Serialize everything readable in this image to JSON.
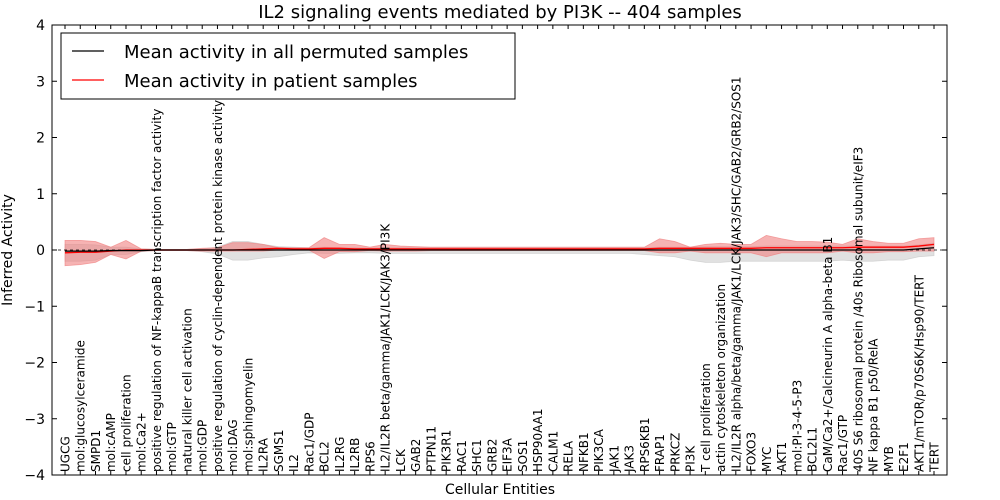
{
  "chart_data": {
    "type": "line",
    "title": "IL2 signaling events mediated by PI3K -- 404 samples",
    "xlabel": "Cellular Entities",
    "ylabel": "Inferred Activity",
    "ylim": [
      -4,
      4
    ],
    "yticks": [
      -4,
      -3,
      -2,
      -1,
      0,
      1,
      2,
      3,
      4
    ],
    "legend_position": "top-left",
    "legend": [
      {
        "label": "Mean activity in all permuted samples",
        "color": "#000000"
      },
      {
        "label": "Mean activity in patient samples",
        "color": "#ff0000"
      }
    ],
    "colors": {
      "permuted": "#000000",
      "patient": "#ff0000",
      "patient_band": "#f08080",
      "permuted_band": "#c8c8c8",
      "zero_line": "#000000"
    },
    "categories": [
      "UGCG",
      "mol:glucosylceramide",
      "SMPD1",
      "mol:cAMP",
      "cell proliferation",
      "mol:Ca2+",
      "positive regulation of NF-kappaB transcription factor activity",
      "mol:GTP",
      "natural killer cell activation",
      "mol:GDP",
      "positive regulation of cyclin-dependent protein kinase activity",
      "mol:DAG",
      "mol:sphingomyelin",
      "IL2RA",
      "SGMS1",
      "IL2",
      "Rac1/GDP",
      "BCL2",
      "IL2RG",
      "IL2RB",
      "RPS6",
      "IL2/IL2R beta/gamma/JAK1/LCK/JAK3/PI3K",
      "LCK",
      "GAB2",
      "PTPN11",
      "PIK3R1",
      "RAC1",
      "SHC1",
      "GRB2",
      "EIF3A",
      "SOS1",
      "HSP90AA1",
      "CALM1",
      "RELA",
      "NFKB1",
      "PIK3CA",
      "JAK1",
      "JAK3",
      "RPS6KB1",
      "FRAP1",
      "PRKCZ",
      "PI3K",
      "T cell proliferation",
      "actin cytoskeleton organization",
      "IL2/IL2R alpha/beta/gamma/JAK1/LCK/JAK3/SHC/GAB2/GRB2/SOS1",
      "FOXO3",
      "MYC",
      "AKT1",
      "mol:PI-3-4-5-P3",
      "BCL2L1",
      "CaM/Ca2+/Calcineurin A alpha-beta B1",
      "Rac1/GTP",
      "40S S6 ribosomal protein /40s Ribosomal subunit/eIF3",
      "NF kappa B1 p50/RelA",
      "MYB",
      "E2F1",
      "AKT1/mTOR/p70S6K/Hsp90/TERT",
      "TERT"
    ],
    "series": [
      {
        "name": "Mean activity in all permuted samples",
        "values": [
          -0.02,
          -0.02,
          -0.02,
          -0.01,
          -0.01,
          -0.01,
          0,
          0,
          0,
          0,
          0,
          0,
          0,
          0,
          0,
          0,
          0,
          0,
          0,
          0,
          0,
          0,
          0,
          0,
          0,
          0,
          0,
          0,
          0,
          0,
          0,
          0,
          0,
          0,
          0,
          0,
          0,
          0,
          0,
          0,
          0,
          0,
          0,
          0,
          0,
          0,
          0,
          0,
          0,
          0,
          0,
          0,
          0,
          0,
          0,
          0,
          0.02,
          0.04
        ]
      },
      {
        "name": "Mean activity in patient samples",
        "values": [
          -0.05,
          -0.04,
          -0.04,
          -0.02,
          0,
          0,
          0,
          0,
          0,
          0,
          0,
          0,
          0.01,
          0.02,
          0.03,
          0.02,
          0.02,
          0.03,
          0.03,
          0.02,
          0.02,
          0.02,
          0.02,
          0.02,
          0.02,
          0.02,
          0.02,
          0.02,
          0.02,
          0.02,
          0.02,
          0.02,
          0.02,
          0.02,
          0.02,
          0.02,
          0.02,
          0.02,
          0.02,
          0.03,
          0.03,
          0.03,
          0.03,
          0.03,
          0.03,
          0.03,
          0.04,
          0.04,
          0.04,
          0.04,
          0.04,
          0.04,
          0.05,
          0.05,
          0.05,
          0.05,
          0.07,
          0.1
        ]
      },
      {
        "name": "patient band upper",
        "values": [
          0.17,
          0.17,
          0.15,
          0.05,
          0.17,
          0.02,
          0.01,
          0.01,
          0.01,
          0.03,
          0.04,
          0.13,
          0.13,
          0.1,
          0.04,
          0.04,
          0.04,
          0.22,
          0.1,
          0.1,
          0.05,
          0.1,
          0.07,
          0.06,
          0.05,
          0.05,
          0.05,
          0.05,
          0.05,
          0.05,
          0.05,
          0.05,
          0.05,
          0.05,
          0.05,
          0.05,
          0.05,
          0.05,
          0.05,
          0.2,
          0.15,
          0.05,
          0.1,
          0.12,
          0.1,
          0.1,
          0.26,
          0.2,
          0.15,
          0.15,
          0.14,
          0.1,
          0.2,
          0.15,
          0.12,
          0.12,
          0.2,
          0.22
        ]
      },
      {
        "name": "patient band lower",
        "values": [
          -0.28,
          -0.26,
          -0.22,
          -0.08,
          -0.16,
          -0.02,
          -0.01,
          -0.01,
          -0.01,
          -0.02,
          -0.02,
          -0.02,
          -0.02,
          -0.02,
          0,
          0,
          0,
          -0.15,
          -0.03,
          -0.03,
          -0.01,
          -0.02,
          -0.02,
          -0.02,
          -0.01,
          -0.01,
          -0.01,
          -0.01,
          -0.01,
          -0.01,
          -0.01,
          -0.01,
          -0.01,
          -0.01,
          -0.01,
          -0.01,
          -0.01,
          -0.01,
          -0.01,
          -0.05,
          -0.05,
          -0.02,
          -0.05,
          -0.05,
          -0.05,
          -0.05,
          -0.12,
          -0.05,
          -0.05,
          -0.05,
          -0.05,
          -0.02,
          -0.05,
          -0.05,
          -0.03,
          -0.03,
          -0.02,
          -0.02
        ]
      },
      {
        "name": "permuted band upper",
        "values": [
          0.1,
          0.1,
          0.09,
          0.05,
          0.05,
          0.02,
          0.01,
          0.01,
          0.01,
          0.02,
          0.05,
          0.15,
          0.15,
          0.1,
          0.06,
          0.05,
          0.04,
          0.05,
          0.04,
          0.04,
          0.03,
          0.04,
          0.04,
          0.04,
          0.04,
          0.04,
          0.04,
          0.04,
          0.04,
          0.04,
          0.04,
          0.04,
          0.04,
          0.04,
          0.04,
          0.04,
          0.04,
          0.04,
          0.04,
          0.05,
          0.05,
          0.05,
          0.06,
          0.06,
          0.06,
          0.06,
          0.07,
          0.07,
          0.07,
          0.07,
          0.07,
          0.07,
          0.07,
          0.07,
          0.07,
          0.07,
          0.09,
          0.12
        ]
      },
      {
        "name": "permuted band lower",
        "values": [
          -0.2,
          -0.2,
          -0.18,
          -0.08,
          -0.08,
          -0.03,
          -0.01,
          -0.01,
          -0.01,
          -0.03,
          -0.07,
          -0.18,
          -0.18,
          -0.14,
          -0.12,
          -0.08,
          -0.05,
          -0.06,
          -0.06,
          -0.05,
          -0.05,
          -0.06,
          -0.06,
          -0.06,
          -0.06,
          -0.06,
          -0.06,
          -0.06,
          -0.06,
          -0.06,
          -0.06,
          -0.06,
          -0.06,
          -0.06,
          -0.06,
          -0.06,
          -0.06,
          -0.06,
          -0.08,
          -0.1,
          -0.12,
          -0.18,
          -0.22,
          -0.22,
          -0.2,
          -0.2,
          -0.2,
          -0.2,
          -0.2,
          -0.2,
          -0.2,
          -0.18,
          -0.2,
          -0.2,
          -0.18,
          -0.18,
          -0.12,
          -0.1
        ]
      }
    ]
  }
}
